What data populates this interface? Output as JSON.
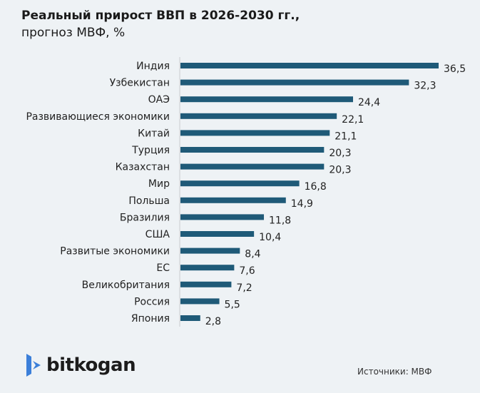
{
  "chart_data": {
    "type": "bar",
    "orientation": "horizontal",
    "title": "Реальный прирост ВВП в 2026-2030 гг.,",
    "subtitle": "прогноз МВФ, %",
    "categories": [
      "Индия",
      "Узбекистан",
      "ОАЭ",
      "Развивающиеся экономики",
      "Китай",
      "Турция",
      "Казахстан",
      "Мир",
      "Польша",
      "Бразилия",
      "США",
      "Развитые экономики",
      "ЕС",
      "Великобритания",
      "Россия",
      "Япония"
    ],
    "values": [
      36.5,
      32.3,
      24.4,
      22.1,
      21.1,
      20.3,
      20.3,
      16.8,
      14.9,
      11.8,
      10.4,
      8.4,
      7.6,
      7.2,
      5.5,
      2.8
    ],
    "value_labels": [
      "36,5",
      "32,3",
      "24,4",
      "22,1",
      "21,1",
      "20,3",
      "20,3",
      "16,8",
      "14,9",
      "11,8",
      "10,4",
      "8,4",
      "7,6",
      "7,2",
      "5,5",
      "2,8"
    ],
    "xlim": [
      0,
      36.5
    ],
    "xlabel": "",
    "ylabel": "",
    "grid": false,
    "bar_color": "#1f5a78",
    "background": "#eef2f5"
  },
  "footer": {
    "brand": "bitkogan",
    "source": "Источники: МВФ"
  }
}
